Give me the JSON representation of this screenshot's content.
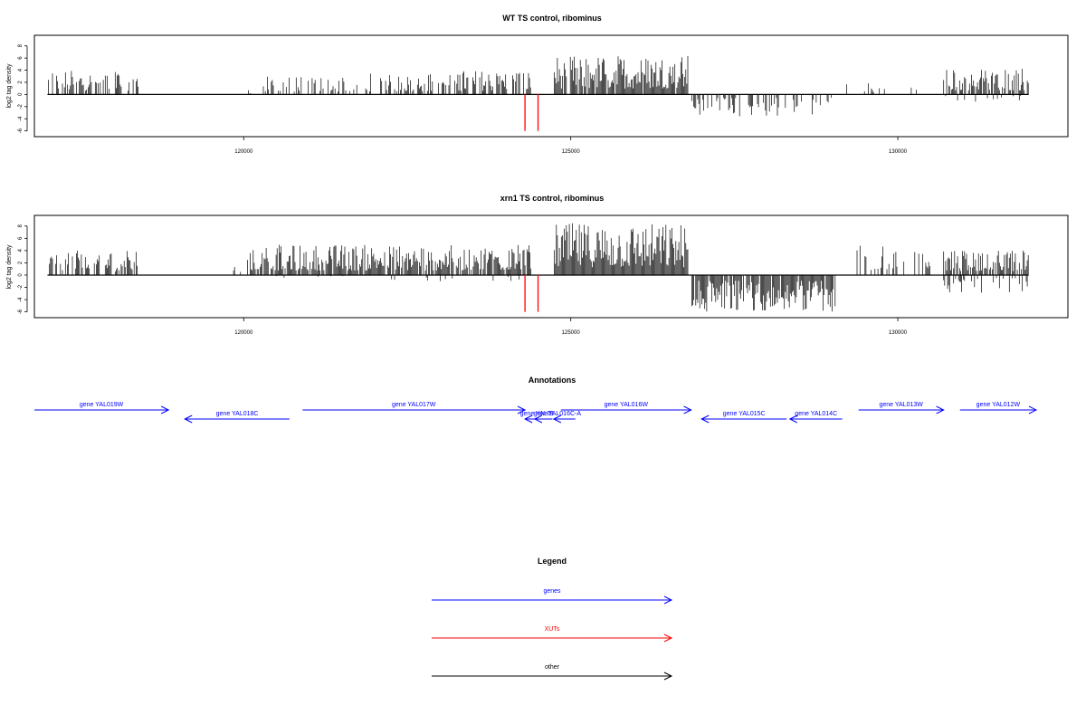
{
  "chart_data": [
    {
      "type": "bar",
      "title": "WT TS control, ribominus",
      "ylabel": "log2 tag density",
      "xlim": [
        116800,
        132600
      ],
      "ylim": [
        -6.5,
        9
      ],
      "y_ticks": [
        8,
        6,
        4,
        2,
        0,
        -2,
        -4,
        -6
      ],
      "x_ticks": [
        120000,
        125000,
        130000
      ],
      "series": [
        {
          "color": "#000000",
          "segments": [
            {
              "start": 117000,
              "end": 118400,
              "sign": 1,
              "max": 4.0,
              "density": 0.55
            },
            {
              "start": 119800,
              "end": 120200,
              "sign": 1,
              "max": 1.2,
              "density": 0.1
            },
            {
              "start": 120300,
              "end": 121500,
              "sign": 1,
              "max": 3.0,
              "density": 0.4
            },
            {
              "start": 121500,
              "end": 123000,
              "sign": 1,
              "max": 3.5,
              "density": 0.45
            },
            {
              "start": 123000,
              "end": 124400,
              "sign": 1,
              "max": 4.0,
              "density": 0.5
            },
            {
              "start": 124750,
              "end": 126800,
              "sign": 1,
              "max": 6.5,
              "density": 0.9
            },
            {
              "start": 126850,
              "end": 129000,
              "sign": -1,
              "max": 3.6,
              "density": 0.4
            },
            {
              "start": 129200,
              "end": 130300,
              "sign": 1,
              "max": 2.0,
              "density": 0.1
            },
            {
              "start": 130200,
              "end": 130450,
              "sign": -1,
              "max": 2.0,
              "density": 0.1
            },
            {
              "start": 130700,
              "end": 132000,
              "sign": 1,
              "max": 4.5,
              "density": 0.75
            },
            {
              "start": 130700,
              "end": 132000,
              "sign": -1,
              "max": 1.2,
              "density": 0.12
            }
          ]
        },
        {
          "color": "#ff0000",
          "bars": [
            {
              "x": 124300,
              "y": -6
            },
            {
              "x": 124500,
              "y": -6
            }
          ]
        }
      ]
    },
    {
      "type": "bar",
      "title": "xrn1 TS control, ribominus",
      "ylabel": "log2 tag density",
      "xlim": [
        116800,
        132600
      ],
      "ylim": [
        -6.5,
        9
      ],
      "y_ticks": [
        8,
        6,
        4,
        2,
        0,
        -2,
        -4,
        -6
      ],
      "x_ticks": [
        120000,
        125000,
        130000
      ],
      "series": [
        {
          "color": "#000000",
          "segments": [
            {
              "start": 117000,
              "end": 118400,
              "sign": 1,
              "max": 4.0,
              "density": 0.65
            },
            {
              "start": 119800,
              "end": 120100,
              "sign": 1,
              "max": 3.5,
              "density": 0.2
            },
            {
              "start": 120100,
              "end": 124400,
              "sign": 1,
              "max": 5.0,
              "density": 0.85
            },
            {
              "start": 120100,
              "end": 124400,
              "sign": -1,
              "max": 1.0,
              "density": 0.05
            },
            {
              "start": 124750,
              "end": 126800,
              "sign": 1,
              "max": 8.5,
              "density": 1.0
            },
            {
              "start": 126850,
              "end": 129050,
              "sign": -1,
              "max": 6.0,
              "density": 0.9
            },
            {
              "start": 129300,
              "end": 130500,
              "sign": 1,
              "max": 4.8,
              "density": 0.35
            },
            {
              "start": 130700,
              "end": 132000,
              "sign": 1,
              "max": 4.2,
              "density": 0.8
            },
            {
              "start": 130700,
              "end": 132000,
              "sign": -1,
              "max": 3.0,
              "density": 0.3
            }
          ]
        },
        {
          "color": "#ff0000",
          "bars": [
            {
              "x": 124300,
              "y": -6
            },
            {
              "x": 124500,
              "y": -6
            }
          ]
        }
      ]
    }
  ],
  "annotations": {
    "title": "Annotations",
    "color": "#0000ff",
    "genes": [
      {
        "label": "gene YAL019W",
        "start": 116800,
        "end": 118850,
        "strand": "+",
        "row": 0
      },
      {
        "label": "gene YAL018C",
        "start": 119100,
        "end": 120700,
        "strand": "-",
        "row": 1
      },
      {
        "label": "gene YAL017W",
        "start": 120900,
        "end": 124300,
        "strand": "+",
        "row": 0
      },
      {
        "label": "gene YAL0",
        "start": 124300,
        "end": 124620,
        "strand": "-",
        "row": 1
      },
      {
        "label": "gene B",
        "start": 124450,
        "end": 124720,
        "strand": "-",
        "row": 1
      },
      {
        "label": "YAL016C-A",
        "start": 124740,
        "end": 125070,
        "strand": "-",
        "row": 1
      },
      {
        "label": "gene YAL016W",
        "start": 124850,
        "end": 126840,
        "strand": "+",
        "row": 0
      },
      {
        "label": "gene YAL015C",
        "start": 127000,
        "end": 128300,
        "strand": "-",
        "row": 1
      },
      {
        "label": "gene YAL014C",
        "start": 128350,
        "end": 129150,
        "strand": "-",
        "row": 1
      },
      {
        "label": "gene YAL013W",
        "start": 129400,
        "end": 130700,
        "strand": "+",
        "row": 0
      },
      {
        "label": "gene YAL012W",
        "start": 130950,
        "end": 132150,
        "strand": "+",
        "row": 0
      }
    ]
  },
  "legend": {
    "title": "Legend",
    "items": [
      {
        "label": "genes",
        "color": "#0000ff"
      },
      {
        "label": "XUTs",
        "color": "#ff0000"
      },
      {
        "label": "other",
        "color": "#000000"
      }
    ]
  }
}
